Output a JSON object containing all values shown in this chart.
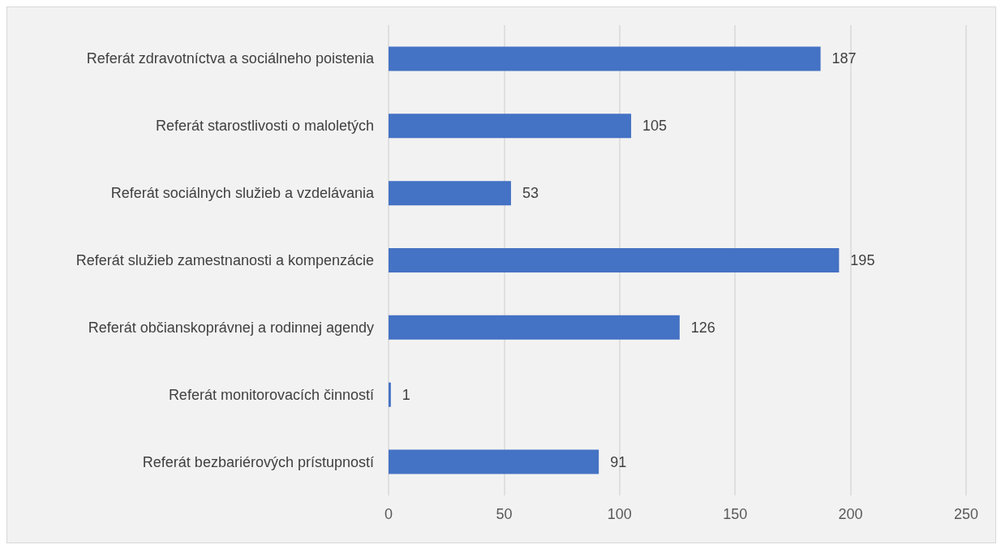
{
  "chart_data": {
    "type": "bar",
    "orientation": "horizontal",
    "categories": [
      "Referát zdravotníctva a sociálneho poistenia",
      "Referát starostlivosti o maloletých",
      "Referát sociálnych služieb a vzdelávania",
      "Referát služieb zamestnanosti a kompenzácie",
      "Referát občianskoprávnej a rodinnej agendy",
      "Referát monitorovacích činností",
      "Referát bezbariérových prístupností"
    ],
    "values": [
      187,
      105,
      53,
      195,
      126,
      1,
      91
    ],
    "color": "#4472c4",
    "xlim": [
      0,
      250
    ],
    "xticks": [
      0,
      50,
      100,
      150,
      200,
      250
    ],
    "grid": "x",
    "data_labels": true
  }
}
